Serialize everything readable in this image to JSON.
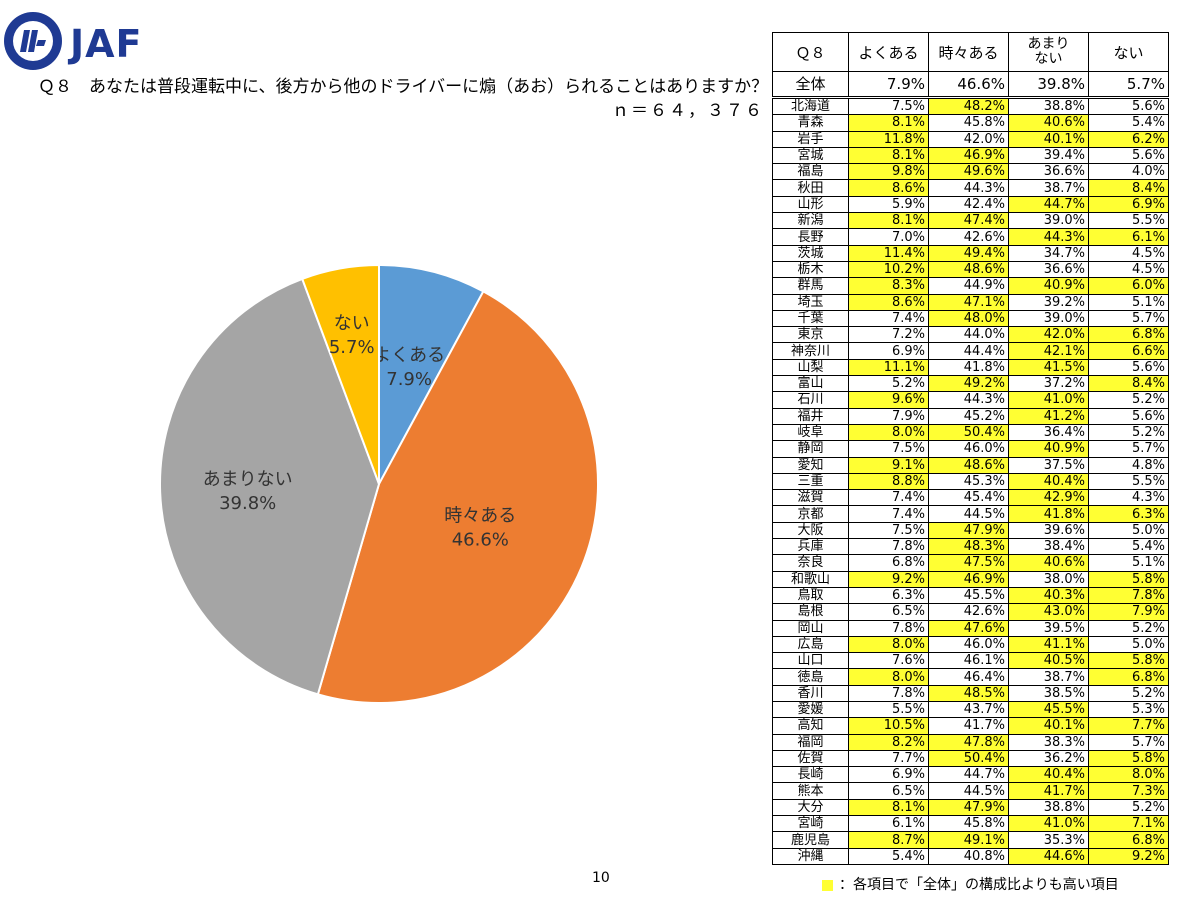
{
  "header": {
    "brand": "JAF"
  },
  "question": "Ｑ８　あなたは普段運転中に、後方から他のドライバーに煽（あお）られることはありますか？",
  "n_label": "ｎ＝６４，３７６",
  "page_number": "10",
  "legend_note": "：各項目で「全体」の構成比よりも高い項目",
  "colors": {
    "yokuaru": "#5b9bd5",
    "tokidoki": "#ed7d31",
    "amarinai": "#a5a5a5",
    "nai": "#ffc000",
    "highlight": "#ffff33"
  },
  "chart_data": {
    "type": "pie",
    "categories": [
      "よくある",
      "時々ある",
      "あまりない",
      "ない"
    ],
    "values": [
      7.9,
      46.6,
      39.8,
      5.7
    ],
    "value_labels": [
      "7.9%",
      "46.6%",
      "39.8%",
      "5.7%"
    ],
    "colors": [
      "#5b9bd5",
      "#ed7d31",
      "#a5a5a5",
      "#ffc000"
    ]
  },
  "table": {
    "headers": [
      "Ｑ８",
      "よくある",
      "時々ある",
      "あまり\nない",
      "ない"
    ],
    "total": {
      "label": "全体",
      "values": [
        "7.9%",
        "46.6%",
        "39.8%",
        "5.7%"
      ]
    },
    "rows": [
      {
        "p": "北海道",
        "v": [
          "7.5%",
          "48.2%",
          "38.8%",
          "5.6%"
        ],
        "h": [
          0,
          1,
          0,
          0
        ]
      },
      {
        "p": "青森",
        "v": [
          "8.1%",
          "45.8%",
          "40.6%",
          "5.4%"
        ],
        "h": [
          1,
          0,
          1,
          0
        ]
      },
      {
        "p": "岩手",
        "v": [
          "11.8%",
          "42.0%",
          "40.1%",
          "6.2%"
        ],
        "h": [
          1,
          0,
          1,
          1
        ]
      },
      {
        "p": "宮城",
        "v": [
          "8.1%",
          "46.9%",
          "39.4%",
          "5.6%"
        ],
        "h": [
          1,
          1,
          0,
          0
        ]
      },
      {
        "p": "福島",
        "v": [
          "9.8%",
          "49.6%",
          "36.6%",
          "4.0%"
        ],
        "h": [
          1,
          1,
          0,
          0
        ]
      },
      {
        "p": "秋田",
        "v": [
          "8.6%",
          "44.3%",
          "38.7%",
          "8.4%"
        ],
        "h": [
          1,
          0,
          0,
          1
        ]
      },
      {
        "p": "山形",
        "v": [
          "5.9%",
          "42.4%",
          "44.7%",
          "6.9%"
        ],
        "h": [
          0,
          0,
          1,
          1
        ]
      },
      {
        "p": "新潟",
        "v": [
          "8.1%",
          "47.4%",
          "39.0%",
          "5.5%"
        ],
        "h": [
          1,
          1,
          0,
          0
        ]
      },
      {
        "p": "長野",
        "v": [
          "7.0%",
          "42.6%",
          "44.3%",
          "6.1%"
        ],
        "h": [
          0,
          0,
          1,
          1
        ]
      },
      {
        "p": "茨城",
        "v": [
          "11.4%",
          "49.4%",
          "34.7%",
          "4.5%"
        ],
        "h": [
          1,
          1,
          0,
          0
        ]
      },
      {
        "p": "栃木",
        "v": [
          "10.2%",
          "48.6%",
          "36.6%",
          "4.5%"
        ],
        "h": [
          1,
          1,
          0,
          0
        ]
      },
      {
        "p": "群馬",
        "v": [
          "8.3%",
          "44.9%",
          "40.9%",
          "6.0%"
        ],
        "h": [
          1,
          0,
          1,
          1
        ]
      },
      {
        "p": "埼玉",
        "v": [
          "8.6%",
          "47.1%",
          "39.2%",
          "5.1%"
        ],
        "h": [
          1,
          1,
          0,
          0
        ]
      },
      {
        "p": "千葉",
        "v": [
          "7.4%",
          "48.0%",
          "39.0%",
          "5.7%"
        ],
        "h": [
          0,
          1,
          0,
          0
        ]
      },
      {
        "p": "東京",
        "v": [
          "7.2%",
          "44.0%",
          "42.0%",
          "6.8%"
        ],
        "h": [
          0,
          0,
          1,
          1
        ]
      },
      {
        "p": "神奈川",
        "v": [
          "6.9%",
          "44.4%",
          "42.1%",
          "6.6%"
        ],
        "h": [
          0,
          0,
          1,
          1
        ]
      },
      {
        "p": "山梨",
        "v": [
          "11.1%",
          "41.8%",
          "41.5%",
          "5.6%"
        ],
        "h": [
          1,
          0,
          1,
          0
        ]
      },
      {
        "p": "富山",
        "v": [
          "5.2%",
          "49.2%",
          "37.2%",
          "8.4%"
        ],
        "h": [
          0,
          1,
          0,
          1
        ]
      },
      {
        "p": "石川",
        "v": [
          "9.6%",
          "44.3%",
          "41.0%",
          "5.2%"
        ],
        "h": [
          1,
          0,
          1,
          0
        ]
      },
      {
        "p": "福井",
        "v": [
          "7.9%",
          "45.2%",
          "41.2%",
          "5.6%"
        ],
        "h": [
          0,
          0,
          1,
          0
        ]
      },
      {
        "p": "岐阜",
        "v": [
          "8.0%",
          "50.4%",
          "36.4%",
          "5.2%"
        ],
        "h": [
          1,
          1,
          0,
          0
        ]
      },
      {
        "p": "静岡",
        "v": [
          "7.5%",
          "46.0%",
          "40.9%",
          "5.7%"
        ],
        "h": [
          0,
          0,
          1,
          0
        ]
      },
      {
        "p": "愛知",
        "v": [
          "9.1%",
          "48.6%",
          "37.5%",
          "4.8%"
        ],
        "h": [
          1,
          1,
          0,
          0
        ]
      },
      {
        "p": "三重",
        "v": [
          "8.8%",
          "45.3%",
          "40.4%",
          "5.5%"
        ],
        "h": [
          1,
          0,
          1,
          0
        ]
      },
      {
        "p": "滋賀",
        "v": [
          "7.4%",
          "45.4%",
          "42.9%",
          "4.3%"
        ],
        "h": [
          0,
          0,
          1,
          0
        ]
      },
      {
        "p": "京都",
        "v": [
          "7.4%",
          "44.5%",
          "41.8%",
          "6.3%"
        ],
        "h": [
          0,
          0,
          1,
          1
        ]
      },
      {
        "p": "大阪",
        "v": [
          "7.5%",
          "47.9%",
          "39.6%",
          "5.0%"
        ],
        "h": [
          0,
          1,
          0,
          0
        ]
      },
      {
        "p": "兵庫",
        "v": [
          "7.8%",
          "48.3%",
          "38.4%",
          "5.4%"
        ],
        "h": [
          0,
          1,
          0,
          0
        ]
      },
      {
        "p": "奈良",
        "v": [
          "6.8%",
          "47.5%",
          "40.6%",
          "5.1%"
        ],
        "h": [
          0,
          1,
          1,
          0
        ]
      },
      {
        "p": "和歌山",
        "v": [
          "9.2%",
          "46.9%",
          "38.0%",
          "5.8%"
        ],
        "h": [
          1,
          1,
          0,
          1
        ]
      },
      {
        "p": "鳥取",
        "v": [
          "6.3%",
          "45.5%",
          "40.3%",
          "7.8%"
        ],
        "h": [
          0,
          0,
          1,
          1
        ]
      },
      {
        "p": "島根",
        "v": [
          "6.5%",
          "42.6%",
          "43.0%",
          "7.9%"
        ],
        "h": [
          0,
          0,
          1,
          1
        ]
      },
      {
        "p": "岡山",
        "v": [
          "7.8%",
          "47.6%",
          "39.5%",
          "5.2%"
        ],
        "h": [
          0,
          1,
          0,
          0
        ]
      },
      {
        "p": "広島",
        "v": [
          "8.0%",
          "46.0%",
          "41.1%",
          "5.0%"
        ],
        "h": [
          1,
          0,
          1,
          0
        ]
      },
      {
        "p": "山口",
        "v": [
          "7.6%",
          "46.1%",
          "40.5%",
          "5.8%"
        ],
        "h": [
          0,
          0,
          1,
          1
        ]
      },
      {
        "p": "徳島",
        "v": [
          "8.0%",
          "46.4%",
          "38.7%",
          "6.8%"
        ],
        "h": [
          1,
          0,
          0,
          1
        ]
      },
      {
        "p": "香川",
        "v": [
          "7.8%",
          "48.5%",
          "38.5%",
          "5.2%"
        ],
        "h": [
          0,
          1,
          0,
          0
        ]
      },
      {
        "p": "愛媛",
        "v": [
          "5.5%",
          "43.7%",
          "45.5%",
          "5.3%"
        ],
        "h": [
          0,
          0,
          1,
          0
        ]
      },
      {
        "p": "高知",
        "v": [
          "10.5%",
          "41.7%",
          "40.1%",
          "7.7%"
        ],
        "h": [
          1,
          0,
          1,
          1
        ]
      },
      {
        "p": "福岡",
        "v": [
          "8.2%",
          "47.8%",
          "38.3%",
          "5.7%"
        ],
        "h": [
          1,
          1,
          0,
          0
        ]
      },
      {
        "p": "佐賀",
        "v": [
          "7.7%",
          "50.4%",
          "36.2%",
          "5.8%"
        ],
        "h": [
          0,
          1,
          0,
          1
        ]
      },
      {
        "p": "長崎",
        "v": [
          "6.9%",
          "44.7%",
          "40.4%",
          "8.0%"
        ],
        "h": [
          0,
          0,
          1,
          1
        ]
      },
      {
        "p": "熊本",
        "v": [
          "6.5%",
          "44.5%",
          "41.7%",
          "7.3%"
        ],
        "h": [
          0,
          0,
          1,
          1
        ]
      },
      {
        "p": "大分",
        "v": [
          "8.1%",
          "47.9%",
          "38.8%",
          "5.2%"
        ],
        "h": [
          1,
          1,
          0,
          0
        ]
      },
      {
        "p": "宮崎",
        "v": [
          "6.1%",
          "45.8%",
          "41.0%",
          "7.1%"
        ],
        "h": [
          0,
          0,
          1,
          1
        ]
      },
      {
        "p": "鹿児島",
        "v": [
          "8.7%",
          "49.1%",
          "35.3%",
          "6.8%"
        ],
        "h": [
          1,
          1,
          0,
          1
        ]
      },
      {
        "p": "沖縄",
        "v": [
          "5.4%",
          "40.8%",
          "44.6%",
          "9.2%"
        ],
        "h": [
          0,
          0,
          1,
          1
        ]
      }
    ]
  }
}
